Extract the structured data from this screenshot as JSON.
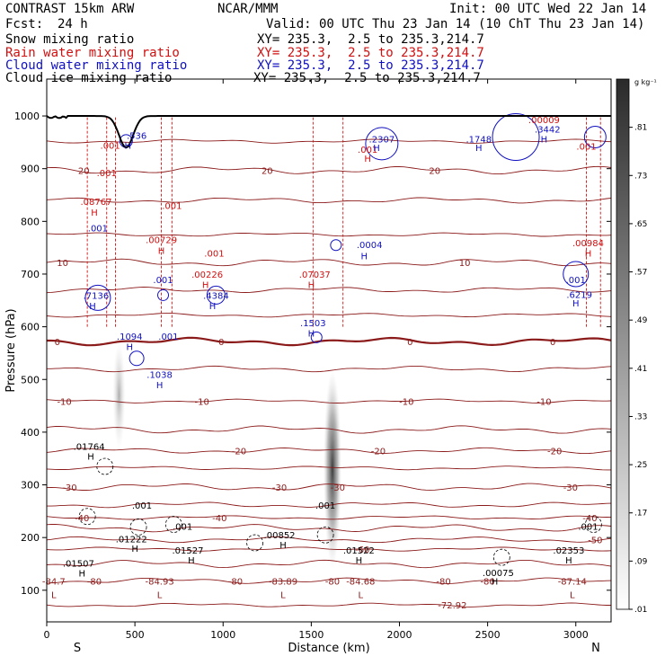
{
  "header": {
    "model": "CONTRAST 15km ARW",
    "org": "NCAR/MMM",
    "init": "Init: 00 UTC Wed 22 Jan 14",
    "fcst_label": "Fcst:",
    "fcst_value": "24 h",
    "valid": "Valid: 00 UTC Thu 23 Jan 14 (10 ChT Thu 23 Jan 14)"
  },
  "fields": [
    {
      "name": "Snow mixing ratio",
      "xy": "XY= 235.3,  2.5 to 235.3,214.7",
      "color": "#000000"
    },
    {
      "name": "Rain water mixing ratio",
      "xy": "XY= 235.3,  2.5 to 235.3,214.7",
      "color": "#d01010"
    },
    {
      "name": "Cloud water mixing ratio",
      "xy": "XY= 235.3,  2.5 to 235.3,214.7",
      "color": "#1010c0"
    },
    {
      "name": "Cloud ice mixing ratio",
      "xy": "XY= 235.3,  2.5 to 235.3,214.7",
      "color": "#000000"
    }
  ],
  "chart_data": {
    "type": "heatmap",
    "xlabel": "Distance (km)",
    "ylabel": "Pressure (hPa)",
    "xlim": [
      0,
      3200
    ],
    "ylim": [
      1070,
      40
    ],
    "x_ticks": [
      0,
      500,
      1000,
      1500,
      2000,
      2500,
      3000
    ],
    "y_ticks": [
      100,
      200,
      300,
      400,
      500,
      600,
      700,
      800,
      900,
      1000
    ],
    "x_end_labels": {
      "left": "S",
      "right": "N"
    },
    "colorbar": {
      "unit": "g kg⁻¹",
      "levels": [
        ".01",
        ".09",
        ".17",
        ".25",
        ".33",
        ".41",
        ".49",
        ".57",
        ".65",
        ".73",
        ".81"
      ],
      "values": [
        0.01,
        0.09,
        0.17,
        0.25,
        0.33,
        0.41,
        0.49,
        0.57,
        0.65,
        0.73,
        0.81
      ]
    },
    "temperature_contours": {
      "color": "#8b1a1a",
      "labels": [
        {
          "text": "-72.92",
          "x": 2300,
          "p": 72
        },
        {
          "text": "-80",
          "x": 270,
          "p": 118
        },
        {
          "text": "-80",
          "x": 1070,
          "p": 118
        },
        {
          "text": "-80",
          "x": 1620,
          "p": 118
        },
        {
          "text": "-80",
          "x": 2250,
          "p": 118
        },
        {
          "text": "-80",
          "x": 2500,
          "p": 118
        },
        {
          "text": "-60",
          "x": 1790,
          "p": 178
        },
        {
          "text": "-50",
          "x": 3110,
          "p": 196
        },
        {
          "text": "-40",
          "x": 200,
          "p": 238
        },
        {
          "text": "-40",
          "x": 980,
          "p": 238
        },
        {
          "text": "-40",
          "x": 3080,
          "p": 238
        },
        {
          "text": "-30",
          "x": 130,
          "p": 296
        },
        {
          "text": "-30",
          "x": 1320,
          "p": 296
        },
        {
          "text": "-30",
          "x": 1650,
          "p": 296
        },
        {
          "text": "-30",
          "x": 2970,
          "p": 296
        },
        {
          "text": "-20",
          "x": 1090,
          "p": 365
        },
        {
          "text": "-20",
          "x": 1880,
          "p": 365
        },
        {
          "text": "-20",
          "x": 2880,
          "p": 365
        },
        {
          "text": "-10",
          "x": 100,
          "p": 459
        },
        {
          "text": "-10",
          "x": 880,
          "p": 459
        },
        {
          "text": "-10",
          "x": 2040,
          "p": 459
        },
        {
          "text": "-10",
          "x": 2820,
          "p": 459
        },
        {
          "text": "0",
          "x": 60,
          "p": 572
        },
        {
          "text": "0",
          "x": 990,
          "p": 572
        },
        {
          "text": "0",
          "x": 2060,
          "p": 572
        },
        {
          "text": "0",
          "x": 2870,
          "p": 572
        },
        {
          "text": "10",
          "x": 90,
          "p": 722
        },
        {
          "text": "10",
          "x": 2370,
          "p": 722
        },
        {
          "text": "20",
          "x": 210,
          "p": 897
        },
        {
          "text": "20",
          "x": 1250,
          "p": 897
        },
        {
          "text": "20",
          "x": 2200,
          "p": 897
        }
      ]
    },
    "annotations": [
      {
        "text": "L",
        "x": 40,
        "p": 92,
        "color": "#8b1a1a"
      },
      {
        "text": "-84.7",
        "x": 40,
        "p": 118,
        "color": "#8b1a1a"
      },
      {
        "text": "L",
        "x": 640,
        "p": 92,
        "color": "#8b1a1a"
      },
      {
        "text": "-84.93",
        "x": 640,
        "p": 118,
        "color": "#8b1a1a"
      },
      {
        "text": "L",
        "x": 1340,
        "p": 92,
        "color": "#8b1a1a"
      },
      {
        "text": "-83.89",
        "x": 1340,
        "p": 118,
        "color": "#8b1a1a"
      },
      {
        "text": "L",
        "x": 1780,
        "p": 92,
        "color": "#8b1a1a"
      },
      {
        "text": "-84.68",
        "x": 1780,
        "p": 118,
        "color": "#8b1a1a"
      },
      {
        "text": "L",
        "x": 2980,
        "p": 92,
        "color": "#8b1a1a"
      },
      {
        "text": "-87.14",
        "x": 2980,
        "p": 118,
        "color": "#8b1a1a"
      },
      {
        "text": "H",
        "x": 200,
        "p": 133,
        "color": "#000000"
      },
      {
        "text": ".01507",
        "x": 180,
        "p": 152,
        "color": "#000000"
      },
      {
        "text": "H",
        "x": 500,
        "p": 180,
        "color": "#000000"
      },
      {
        "text": ".01222",
        "x": 480,
        "p": 198,
        "color": "#000000"
      },
      {
        "text": "H",
        "x": 820,
        "p": 158,
        "color": "#000000"
      },
      {
        "text": ".01527",
        "x": 800,
        "p": 176,
        "color": "#000000"
      },
      {
        "text": "H",
        "x": 1770,
        "p": 158,
        "color": "#000000"
      },
      {
        "text": ".01522",
        "x": 1770,
        "p": 176,
        "color": "#000000"
      },
      {
        "text": "H",
        "x": 2540,
        "p": 118,
        "color": "#000000"
      },
      {
        "text": ".00075",
        "x": 2560,
        "p": 134,
        "color": "#000000"
      },
      {
        "text": "H",
        "x": 2960,
        "p": 158,
        "color": "#000000"
      },
      {
        "text": ".02353",
        "x": 2960,
        "p": 176,
        "color": "#000000"
      },
      {
        "text": "H",
        "x": 1340,
        "p": 187,
        "color": "#000000"
      },
      {
        "text": ".00852",
        "x": 1320,
        "p": 205,
        "color": "#000000"
      },
      {
        "text": ".001",
        "x": 770,
        "p": 222,
        "color": "#000000"
      },
      {
        "text": ".001",
        "x": 540,
        "p": 262,
        "color": "#000000"
      },
      {
        "text": ".001",
        "x": 1580,
        "p": 262,
        "color": "#000000"
      },
      {
        "text": ".001",
        "x": 3070,
        "p": 222,
        "color": "#000000"
      },
      {
        "text": "H",
        "x": 250,
        "p": 355,
        "color": "#000000"
      },
      {
        "text": ".01764",
        "x": 240,
        "p": 373,
        "color": "#000000"
      },
      {
        "text": "H",
        "x": 640,
        "p": 490,
        "color": "#1010c0"
      },
      {
        "text": ".1038",
        "x": 640,
        "p": 510,
        "color": "#1010c0"
      },
      {
        "text": "H",
        "x": 470,
        "p": 563,
        "color": "#1010c0"
      },
      {
        "text": ".1094",
        "x": 470,
        "p": 582,
        "color": "#1010c0"
      },
      {
        "text": ".001",
        "x": 690,
        "p": 582,
        "color": "#1010c0"
      },
      {
        "text": "H",
        "x": 1500,
        "p": 588,
        "color": "#1010c0"
      },
      {
        "text": ".1503",
        "x": 1510,
        "p": 608,
        "color": "#1010c0"
      },
      {
        "text": "H",
        "x": 260,
        "p": 640,
        "color": "#1010c0"
      },
      {
        "text": ".7136",
        "x": 280,
        "p": 660,
        "color": "#1010c0"
      },
      {
        "text": "H",
        "x": 940,
        "p": 640,
        "color": "#1010c0"
      },
      {
        "text": ".4384",
        "x": 960,
        "p": 660,
        "color": "#1010c0"
      },
      {
        "text": "H",
        "x": 3000,
        "p": 645,
        "color": "#1010c0"
      },
      {
        "text": ".6219",
        "x": 3020,
        "p": 662,
        "color": "#1010c0"
      },
      {
        "text": ".001",
        "x": 3000,
        "p": 690,
        "color": "#1010c0"
      },
      {
        "text": ".001",
        "x": 660,
        "p": 690,
        "color": "#1010c0"
      },
      {
        "text": "H",
        "x": 900,
        "p": 680,
        "color": "#d01010"
      },
      {
        "text": ".00226",
        "x": 910,
        "p": 700,
        "color": "#d01010"
      },
      {
        "text": ".001",
        "x": 950,
        "p": 740,
        "color": "#d01010"
      },
      {
        "text": "H",
        "x": 1500,
        "p": 680,
        "color": "#d01010"
      },
      {
        "text": ".07037",
        "x": 1520,
        "p": 700,
        "color": "#d01010"
      },
      {
        "text": "H",
        "x": 650,
        "p": 745,
        "color": "#d01010"
      },
      {
        "text": ".00729",
        "x": 650,
        "p": 766,
        "color": "#d01010"
      },
      {
        "text": "H",
        "x": 1800,
        "p": 735,
        "color": "#1010c0"
      },
      {
        "text": ".0004",
        "x": 1830,
        "p": 756,
        "color": "#1010c0"
      },
      {
        "text": "H",
        "x": 3070,
        "p": 740,
        "color": "#d01010"
      },
      {
        "text": ".00984",
        "x": 3070,
        "p": 760,
        "color": "#d01010"
      },
      {
        "text": ".001",
        "x": 290,
        "p": 788,
        "color": "#1010c0"
      },
      {
        "text": "H",
        "x": 270,
        "p": 818,
        "color": "#d01010"
      },
      {
        "text": ".08767",
        "x": 280,
        "p": 838,
        "color": "#d01010"
      },
      {
        "text": ".001",
        "x": 710,
        "p": 830,
        "color": "#d01010"
      },
      {
        "text": ".001",
        "x": 340,
        "p": 893,
        "color": "#d01010"
      },
      {
        "text": ".001",
        "x": 360,
        "p": 945,
        "color": "#d01010"
      },
      {
        "text": "H",
        "x": 460,
        "p": 945,
        "color": "#1010c0"
      },
      {
        "text": ".536",
        "x": 510,
        "p": 963,
        "color": "#1010c0"
      },
      {
        "text": "H",
        "x": 1820,
        "p": 920,
        "color": "#d01010"
      },
      {
        "text": ".001",
        "x": 1820,
        "p": 937,
        "color": "#d01010"
      },
      {
        "text": "H",
        "x": 1870,
        "p": 940,
        "color": "#1010c0"
      },
      {
        "text": ".2307",
        "x": 1900,
        "p": 957,
        "color": "#1010c0"
      },
      {
        "text": "H",
        "x": 2450,
        "p": 940,
        "color": "#1010c0"
      },
      {
        "text": ".1748",
        "x": 2450,
        "p": 957,
        "color": "#1010c0"
      },
      {
        "text": "H",
        "x": 2820,
        "p": 957,
        "color": "#1010c0"
      },
      {
        "text": ".3442",
        "x": 2840,
        "p": 975,
        "color": "#1010c0"
      },
      {
        "text": ".00009",
        "x": 2820,
        "p": 993,
        "color": "#d01010"
      },
      {
        "text": ".001",
        "x": 3060,
        "p": 943,
        "color": "#d01010"
      }
    ]
  }
}
